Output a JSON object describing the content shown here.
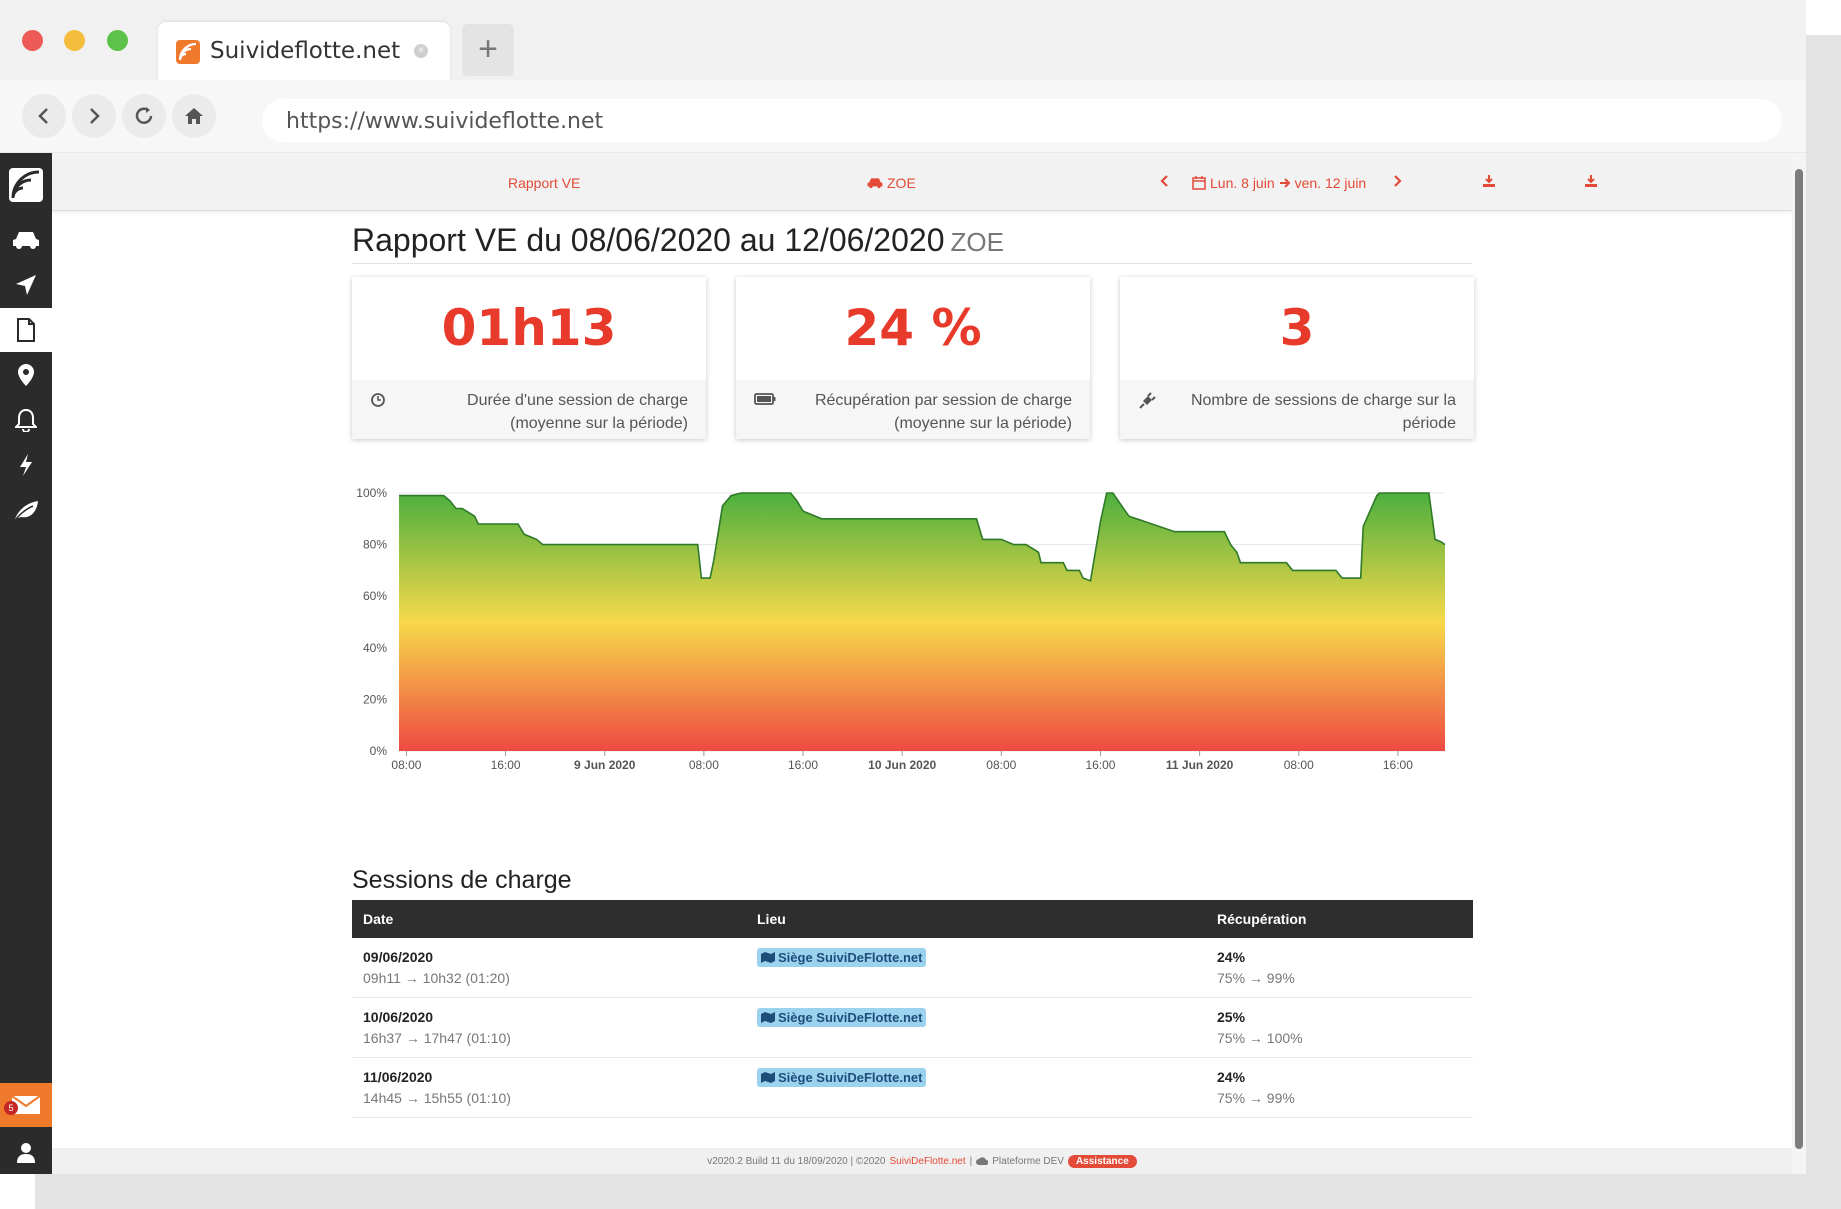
{
  "browser": {
    "tab_title": "Suivideflotte.net",
    "new_tab": "+",
    "url": "https://www.suivideflotte.net"
  },
  "topnav": {
    "report_label": "Rapport VE",
    "vehicle_label": "ZOE",
    "date_range": "Lun. 8 juin",
    "date_range_end": "ven. 12 juin"
  },
  "header": {
    "title": "Rapport VE du 08/06/2020 au 12/06/2020",
    "vehicle": "ZOE"
  },
  "cards": [
    {
      "value": "01h13",
      "desc_line1": "Durée d'une session de charge",
      "desc_line2": "(moyenne sur la période)",
      "icon": "clock-icon"
    },
    {
      "value": "24 %",
      "desc_line1": "Récupération par session de charge",
      "desc_line2": "(moyenne sur la période)",
      "icon": "battery-icon"
    },
    {
      "value": "3",
      "desc_line1": "Nombre de sessions de charge sur la",
      "desc_line2": "période",
      "icon": "plug-icon"
    }
  ],
  "chart_data": {
    "type": "area",
    "title": "",
    "xlabel": "",
    "ylabel": "",
    "ylim": [
      0,
      100
    ],
    "y_ticks": [
      "0%",
      "20%",
      "40%",
      "60%",
      "80%",
      "100%"
    ],
    "x_ticks": [
      "08:00",
      "16:00",
      "9 Jun 2020",
      "08:00",
      "16:00",
      "10 Jun 2020",
      "08:00",
      "16:00",
      "11 Jun 2020",
      "08:00",
      "16:00"
    ],
    "x_hours": [
      8,
      16,
      24,
      32,
      40,
      48,
      56,
      64,
      72,
      80,
      88
    ],
    "x_range_hours": [
      7.4,
      91.8
    ],
    "gradient_colors": [
      "#4caf3e",
      "#f7d94a",
      "#ee4a43"
    ],
    "series": [
      {
        "x": [
          7.4,
          11,
          11.5,
          12,
          12.5,
          13.5,
          13.8,
          17,
          17.5,
          18.5,
          19,
          31.5,
          31.8,
          32.5,
          32.8,
          33.5,
          34.2,
          35,
          39,
          39.5,
          40,
          41.5,
          45,
          48,
          54,
          54.5,
          56,
          57,
          58,
          59,
          59.2,
          61,
          61.3,
          62.3,
          62.6,
          63.2,
          64,
          64.5,
          65,
          66,
          66.3,
          70,
          74,
          74.5,
          75,
          75.3,
          79,
          79.5,
          83,
          83.5,
          85,
          85.2,
          86.3,
          86.5,
          87.5,
          90.5,
          91,
          91.5,
          91.8
        ],
        "values": [
          99,
          99,
          97,
          94,
          94,
          91,
          88,
          88,
          84,
          82,
          80,
          80,
          67,
          67,
          74,
          95,
          99,
          100,
          100,
          97,
          93,
          90,
          90,
          90,
          90,
          82,
          82,
          80,
          80,
          77,
          73,
          73,
          70,
          70,
          67,
          66,
          89,
          100,
          100,
          93,
          91,
          85,
          85,
          80,
          77,
          73,
          73,
          70,
          70,
          67,
          67,
          87,
          99,
          100,
          100,
          100,
          82,
          81,
          80
        ]
      }
    ]
  },
  "sessions": {
    "title": "Sessions de charge",
    "headers": [
      "Date",
      "Lieu",
      "Récupération"
    ],
    "rows": [
      {
        "date": "09/06/2020",
        "time": "09h11 → 10h32 (01:20)",
        "lieu": "Siège SuiviDeFlotte.net",
        "rec": "24%",
        "range": "75% → 99%"
      },
      {
        "date": "10/06/2020",
        "time": "16h37 → 17h47 (01:10)",
        "lieu": "Siège SuiviDeFlotte.net",
        "rec": "25%",
        "range": "75% → 100%"
      },
      {
        "date": "11/06/2020",
        "time": "14h45 → 15h55 (01:10)",
        "lieu": "Siège SuiviDeFlotte.net",
        "rec": "24%",
        "range": "75% → 99%"
      }
    ]
  },
  "sidebar": {
    "mail_badge": "5",
    "icons": [
      "logo-icon",
      "car-icon",
      "navigation-icon",
      "document-icon",
      "map-pin-icon",
      "bell-icon",
      "lightning-icon",
      "leaf-icon",
      "mail-icon",
      "user-icon"
    ]
  },
  "footer": {
    "version": "v2020.2 Build 11 du 18/09/2020 | ©2020",
    "brand": "SuiviDeFlotte.net",
    "sep": "|",
    "platform": "Plateforme DEV",
    "assist": "Assistance"
  },
  "colors": {
    "accent": "#e34a37",
    "kpi": "#e83a2a",
    "sidebar": "#2b2b2b",
    "table_header": "#2e2e2e",
    "tag": "#9bd3ef"
  }
}
